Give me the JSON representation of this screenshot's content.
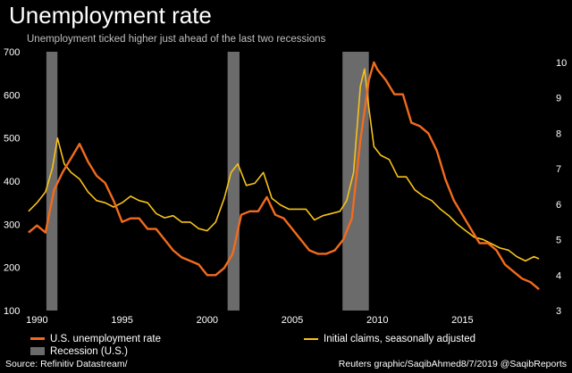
{
  "header": {
    "title": "Unemployment rate",
    "subtitle": "Unemployment ticked higher just ahead of the last two recessions"
  },
  "legend": {
    "items": [
      {
        "label": "U.S. unemployment rate",
        "color": "#f26b1d",
        "kind": "line"
      },
      {
        "label": "Recession (U.S.)",
        "color": "#6b6b6b",
        "kind": "box"
      },
      {
        "label": "Initial claims, seasonally adjusted",
        "color": "#f7c21a",
        "kind": "line"
      }
    ]
  },
  "footer": {
    "source": "Source: Refinitiv Datastream/",
    "credit": "Reuters graphic/SaqibAhmed8/7/2019 @SaqibReports"
  },
  "chart_data": {
    "type": "line",
    "x_ticks": [
      "1990",
      "1995",
      "2000",
      "2005",
      "2010",
      "2015"
    ],
    "x_range": [
      1989.4,
      2019.6
    ],
    "left_axis": {
      "ticks": [
        100,
        200,
        300,
        400,
        500,
        600,
        700
      ],
      "range": [
        100,
        700
      ],
      "series": "Initial claims, seasonally adjusted (thousands)"
    },
    "right_axis": {
      "ticks": [
        3,
        4,
        5,
        6,
        7,
        8,
        9,
        10
      ],
      "range": [
        3,
        10.3
      ],
      "series": "U.S. unemployment rate (%)"
    },
    "recessions": [
      [
        1990.55,
        1991.2
      ],
      [
        2001.2,
        2001.9
      ],
      [
        2007.95,
        2009.5
      ]
    ],
    "series": [
      {
        "name": "U.S. unemployment rate",
        "axis": "right",
        "color": "#f26b1d",
        "x": [
          1989.5,
          1990.0,
          1990.5,
          1991.0,
          1991.5,
          1992.0,
          1992.5,
          1993.0,
          1993.5,
          1994.0,
          1994.5,
          1995.0,
          1995.5,
          1996.0,
          1996.5,
          1997.0,
          1997.5,
          1998.0,
          1998.5,
          1999.0,
          1999.5,
          2000.0,
          2000.5,
          2001.0,
          2001.5,
          2002.0,
          2002.5,
          2003.0,
          2003.5,
          2004.0,
          2004.5,
          2005.0,
          2005.5,
          2006.0,
          2006.5,
          2007.0,
          2007.5,
          2008.0,
          2008.5,
          2009.0,
          2009.5,
          2009.8,
          2010.0,
          2010.5,
          2011.0,
          2011.5,
          2012.0,
          2012.5,
          2013.0,
          2013.5,
          2014.0,
          2014.5,
          2015.0,
          2015.5,
          2016.0,
          2016.5,
          2017.0,
          2017.5,
          2018.0,
          2018.5,
          2019.0,
          2019.5
        ],
        "y": [
          5.2,
          5.4,
          5.2,
          6.4,
          6.9,
          7.3,
          7.7,
          7.2,
          6.8,
          6.6,
          6.1,
          5.5,
          5.6,
          5.6,
          5.3,
          5.3,
          5.0,
          4.7,
          4.5,
          4.4,
          4.3,
          4.0,
          4.0,
          4.2,
          4.6,
          5.7,
          5.8,
          5.8,
          6.2,
          5.7,
          5.6,
          5.3,
          5.0,
          4.7,
          4.6,
          4.6,
          4.7,
          5.0,
          5.6,
          7.8,
          9.5,
          10.0,
          9.8,
          9.5,
          9.1,
          9.1,
          8.3,
          8.2,
          8.0,
          7.5,
          6.7,
          6.1,
          5.7,
          5.3,
          4.9,
          4.9,
          4.7,
          4.3,
          4.1,
          3.9,
          3.8,
          3.6
        ]
      },
      {
        "name": "Initial claims, seasonally adjusted",
        "axis": "left",
        "color": "#f7c21a",
        "x": [
          1989.5,
          1990.0,
          1990.5,
          1990.9,
          1991.2,
          1991.6,
          1992.0,
          1992.5,
          1993.0,
          1993.5,
          1994.0,
          1994.5,
          1995.0,
          1995.5,
          1996.0,
          1996.5,
          1997.0,
          1997.5,
          1998.0,
          1998.5,
          1999.0,
          1999.5,
          2000.0,
          2000.5,
          2001.0,
          2001.4,
          2001.8,
          2002.3,
          2002.8,
          2003.3,
          2003.8,
          2004.3,
          2004.8,
          2005.3,
          2005.8,
          2006.3,
          2006.8,
          2007.3,
          2007.8,
          2008.2,
          2008.6,
          2009.0,
          2009.25,
          2009.5,
          2009.8,
          2010.2,
          2010.7,
          2011.2,
          2011.7,
          2012.2,
          2012.7,
          2013.2,
          2013.7,
          2014.2,
          2014.7,
          2015.2,
          2015.7,
          2016.2,
          2016.7,
          2017.2,
          2017.7,
          2018.2,
          2018.7,
          2019.2,
          2019.5
        ],
        "y": [
          330,
          350,
          375,
          430,
          500,
          440,
          420,
          405,
          375,
          355,
          350,
          340,
          350,
          365,
          355,
          350,
          325,
          315,
          320,
          305,
          305,
          290,
          285,
          305,
          360,
          420,
          440,
          390,
          395,
          420,
          360,
          345,
          335,
          335,
          335,
          310,
          320,
          325,
          330,
          355,
          420,
          620,
          660,
          570,
          480,
          460,
          450,
          410,
          410,
          380,
          365,
          355,
          335,
          320,
          300,
          285,
          270,
          265,
          255,
          245,
          240,
          225,
          215,
          225,
          220
        ]
      }
    ]
  }
}
